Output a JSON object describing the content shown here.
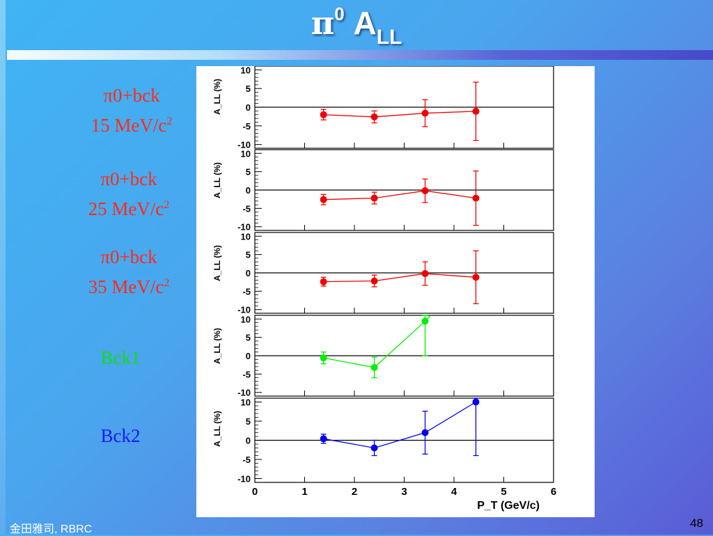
{
  "slide": {
    "title_symbol": "π",
    "title_sup": "0",
    "title_main": "A",
    "title_sub": "LL",
    "footer_left": "金田雅司, RBRC",
    "page_number": "48"
  },
  "labels": [
    {
      "line1": "π0+bck",
      "line2": "15 MeV/c",
      "sup": "2",
      "color": "#ff2a1a"
    },
    {
      "line1": "π0+bck",
      "line2": "25 MeV/c",
      "sup": "2",
      "color": "#ff2a1a"
    },
    {
      "line1": "π0+bck",
      "line2": "35 MeV/c",
      "sup": "2",
      "color": "#ff2a1a"
    },
    {
      "line1": "Bck1",
      "line2": "",
      "sup": "",
      "color": "#11dd11"
    },
    {
      "line1": "Bck2",
      "line2": "",
      "sup": "",
      "color": "#1a1aee"
    }
  ],
  "chart_data": {
    "type": "scatter",
    "xlabel": "P_T (GeV/c)",
    "xlim": [
      0,
      6
    ],
    "x_ticks": [
      "0",
      "1",
      "2",
      "3",
      "4",
      "5",
      "6"
    ],
    "ylabel": "A_LL (%)",
    "ylim": [
      -11,
      11
    ],
    "y_ticks": [
      "10",
      "5",
      "0",
      "-5",
      "-10"
    ],
    "panels": [
      {
        "name": "π0+bck 15 MeV/c2",
        "color": "#ee0000",
        "x": [
          1.38,
          2.4,
          3.42,
          4.44
        ],
        "y": [
          -2.0,
          -2.6,
          -1.6,
          -1.1
        ],
        "yerr": [
          1.4,
          1.6,
          3.6,
          7.8
        ]
      },
      {
        "name": "π0+bck 25 MeV/c2",
        "color": "#ee0000",
        "x": [
          1.38,
          2.4,
          3.42,
          4.44
        ],
        "y": [
          -2.6,
          -2.2,
          -0.2,
          -2.2
        ],
        "yerr": [
          1.4,
          1.6,
          3.2,
          7.4
        ]
      },
      {
        "name": "π0+bck 35 MeV/c2",
        "color": "#ee0000",
        "x": [
          1.38,
          2.4,
          3.42,
          4.44
        ],
        "y": [
          -2.4,
          -2.2,
          -0.2,
          -1.2
        ],
        "yerr": [
          1.2,
          1.6,
          3.2,
          7.2
        ]
      },
      {
        "name": "Bck1",
        "color": "#00ee00",
        "x": [
          1.38,
          2.4,
          3.42,
          4.44
        ],
        "y": [
          -0.6,
          -3.2,
          9.4,
          null
        ],
        "yerr": [
          1.6,
          2.8,
          9.4,
          null
        ]
      },
      {
        "name": "Bck2",
        "color": "#0000ee",
        "x": [
          1.38,
          2.4,
          3.42,
          4.44
        ],
        "y": [
          0.4,
          -2.0,
          2.0,
          10.0
        ],
        "yerr": [
          1.2,
          2.0,
          5.6,
          14.0
        ]
      }
    ]
  }
}
